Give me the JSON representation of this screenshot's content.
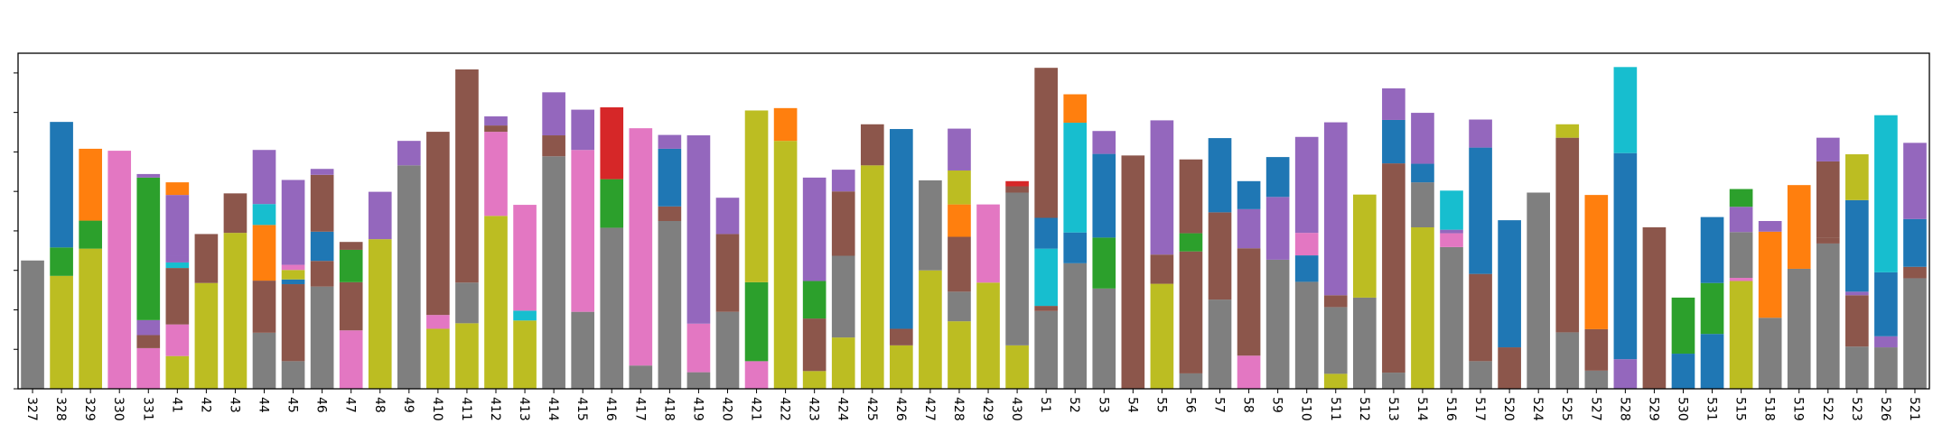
{
  "chart_data": {
    "type": "bar",
    "stacked": true,
    "title": "",
    "xlabel": "",
    "ylabel": "",
    "ylim": [
      0,
      85
    ],
    "grid": false,
    "legend": "none",
    "ytick_labels_visible": false,
    "categories": [
      "327",
      "328",
      "329",
      "330",
      "331",
      "41",
      "42",
      "43",
      "44",
      "45",
      "46",
      "47",
      "48",
      "49",
      "410",
      "411",
      "412",
      "413",
      "414",
      "415",
      "416",
      "417",
      "418",
      "419",
      "420",
      "421",
      "422",
      "423",
      "424",
      "425",
      "426",
      "427",
      "428",
      "429",
      "430",
      "51",
      "52",
      "53",
      "54",
      "55",
      "56",
      "57",
      "58",
      "59",
      "510",
      "511",
      "512",
      "513",
      "514",
      "516",
      "517",
      "520",
      "524",
      "525",
      "527",
      "528",
      "529",
      "530",
      "531",
      "515",
      "518",
      "519",
      "522",
      "523",
      "526",
      "521"
    ],
    "stacks": [
      [
        [
          "gray",
          32.5
        ]
      ],
      [
        [
          "olive",
          28.6
        ],
        [
          "green",
          7.2
        ],
        [
          "blue",
          31.8
        ]
      ],
      [
        [
          "olive",
          35.5
        ],
        [
          "green",
          7.1
        ],
        [
          "orange",
          18.2
        ]
      ],
      [
        [
          "pink",
          60.3
        ]
      ],
      [
        [
          "pink",
          10.3
        ],
        [
          "brown",
          3.3
        ],
        [
          "purple",
          3.8
        ],
        [
          "green",
          36.1
        ],
        [
          "purple",
          0.9
        ]
      ],
      [
        [
          "olive",
          8.3
        ],
        [
          "pink",
          8.0
        ],
        [
          "brown",
          14.3
        ],
        [
          "cyan",
          1.4
        ],
        [
          "purple",
          1.7
        ],
        [
          "purple",
          15.4
        ],
        [
          "orange",
          3.2
        ]
      ],
      [
        [
          "olive",
          26.8
        ],
        [
          "brown",
          12.4
        ]
      ],
      [
        [
          "olive",
          39.5
        ],
        [
          "brown",
          10.0
        ]
      ],
      [
        [
          "gray",
          14.2
        ],
        [
          "brown",
          13.2
        ],
        [
          "orange",
          14.1
        ],
        [
          "cyan",
          5.3
        ],
        [
          "purple",
          13.7
        ]
      ],
      [
        [
          "gray",
          7.0
        ],
        [
          "brown",
          19.5
        ],
        [
          "blue",
          1.2
        ],
        [
          "olive",
          2.4
        ],
        [
          "pink",
          1.3
        ],
        [
          "purple",
          21.5
        ]
      ],
      [
        [
          "gray",
          25.9
        ],
        [
          "brown",
          6.5
        ],
        [
          "blue",
          7.4
        ],
        [
          "brown",
          14.4
        ],
        [
          "purple",
          1.5
        ]
      ],
      [
        [
          "pink",
          14.8
        ],
        [
          "brown",
          12.2
        ],
        [
          "green",
          8.2
        ],
        [
          "brown",
          2.0
        ]
      ],
      [
        [
          "olive",
          37.9
        ],
        [
          "purple",
          12.0
        ]
      ],
      [
        [
          "gray",
          56.6
        ],
        [
          "purple",
          6.2
        ]
      ],
      [
        [
          "olive",
          15.2
        ],
        [
          "pink",
          3.5
        ],
        [
          "brown",
          46.4
        ]
      ],
      [
        [
          "olive",
          16.6
        ],
        [
          "gray",
          10.3
        ],
        [
          "brown",
          54.0
        ]
      ],
      [
        [
          "olive",
          43.8
        ],
        [
          "pink",
          21.3
        ],
        [
          "brown",
          1.6
        ],
        [
          "purple",
          2.3
        ]
      ],
      [
        [
          "olive",
          17.3
        ],
        [
          "cyan",
          2.5
        ],
        [
          "pink",
          26.8
        ]
      ],
      [
        [
          "gray",
          58.9
        ],
        [
          "brown",
          5.3
        ],
        [
          "purple",
          10.9
        ]
      ],
      [
        [
          "gray",
          19.5
        ],
        [
          "pink",
          41.0
        ],
        [
          "purple",
          10.2
        ]
      ],
      [
        [
          "gray",
          40.8
        ],
        [
          "green",
          12.3
        ],
        [
          "red",
          18.2
        ]
      ],
      [
        [
          "gray",
          5.9
        ],
        [
          "pink",
          60.1
        ]
      ],
      [
        [
          "gray",
          42.5
        ],
        [
          "brown",
          3.7
        ],
        [
          "blue",
          14.6
        ],
        [
          "purple",
          3.5
        ]
      ],
      [
        [
          "gray",
          4.2
        ],
        [
          "pink",
          12.3
        ],
        [
          "purple",
          47.7
        ]
      ],
      [
        [
          "gray",
          19.5
        ],
        [
          "brown",
          19.7
        ],
        [
          "purple",
          9.2
        ]
      ],
      [
        [
          "pink",
          7.0
        ],
        [
          "green",
          20.0
        ],
        [
          "olive",
          43.5
        ]
      ],
      [
        [
          "olive",
          62.8
        ],
        [
          "orange",
          8.3
        ]
      ],
      [
        [
          "olive",
          4.5
        ],
        [
          "brown",
          13.3
        ],
        [
          "green",
          9.5
        ],
        [
          "purple",
          26.2
        ]
      ],
      [
        [
          "olive",
          13.0
        ],
        [
          "gray",
          20.7
        ],
        [
          "brown",
          16.3
        ],
        [
          "purple",
          5.5
        ]
      ],
      [
        [
          "olive",
          56.6
        ],
        [
          "brown",
          10.4
        ]
      ],
      [
        [
          "olive",
          11.0
        ],
        [
          "brown",
          4.2
        ],
        [
          "blue",
          50.6
        ]
      ],
      [
        [
          "olive",
          30.0
        ],
        [
          "gray",
          22.8
        ]
      ],
      [
        [
          "olive",
          17.1
        ],
        [
          "gray",
          7.5
        ],
        [
          "brown",
          13.9
        ],
        [
          "orange",
          8.2
        ],
        [
          "olive",
          8.6
        ],
        [
          "purple",
          10.6
        ]
      ],
      [
        [
          "olive",
          26.9
        ],
        [
          "pink",
          19.8
        ]
      ],
      [
        [
          "olive",
          11.0
        ],
        [
          "gray",
          38.7
        ],
        [
          "brown",
          1.6
        ],
        [
          "red",
          1.3
        ]
      ],
      [
        [
          "gray",
          19.7
        ],
        [
          "brown",
          1.3
        ],
        [
          "cyan",
          14.5
        ],
        [
          "blue",
          7.8
        ],
        [
          "brown",
          38.0
        ]
      ],
      [
        [
          "gray",
          31.8
        ],
        [
          "blue",
          7.8
        ],
        [
          "cyan",
          27.8
        ],
        [
          "orange",
          7.2
        ]
      ],
      [
        [
          "gray",
          25.4
        ],
        [
          "green",
          12.9
        ],
        [
          "blue",
          21.2
        ],
        [
          "purple",
          5.8
        ]
      ],
      [
        [
          "brown",
          59.1
        ]
      ],
      [
        [
          "olive",
          26.6
        ],
        [
          "brown",
          7.4
        ],
        [
          "purple",
          34.0
        ]
      ],
      [
        [
          "gray",
          3.9
        ],
        [
          "brown",
          30.9
        ],
        [
          "green",
          4.6
        ],
        [
          "brown",
          18.7
        ]
      ],
      [
        [
          "gray",
          22.6
        ],
        [
          "brown",
          22.1
        ],
        [
          "blue",
          18.8
        ]
      ],
      [
        [
          "pink",
          8.4
        ],
        [
          "brown",
          27.2
        ],
        [
          "purple",
          9.9
        ],
        [
          "blue",
          7.1
        ]
      ],
      [
        [
          "gray",
          32.7
        ],
        [
          "purple",
          15.9
        ],
        [
          "blue",
          10.1
        ]
      ],
      [
        [
          "gray",
          27.1
        ],
        [
          "blue",
          6.7
        ],
        [
          "pink",
          5.7
        ],
        [
          "purple",
          24.3
        ]
      ],
      [
        [
          "olive",
          3.8
        ],
        [
          "gray",
          16.9
        ],
        [
          "brown",
          3.0
        ],
        [
          "purple",
          43.8
        ]
      ],
      [
        [
          "gray",
          23.1
        ],
        [
          "olive",
          26.1
        ]
      ],
      [
        [
          "gray",
          4.1
        ],
        [
          "brown",
          53.0
        ],
        [
          "blue",
          11.0
        ],
        [
          "purple",
          8.0
        ]
      ],
      [
        [
          "olive",
          40.9
        ],
        [
          "gray",
          11.4
        ],
        [
          "blue",
          4.7
        ],
        [
          "purple",
          12.9
        ]
      ],
      [
        [
          "gray",
          35.9
        ],
        [
          "pink",
          3.5
        ],
        [
          "purple",
          0.9
        ],
        [
          "cyan",
          9.9
        ]
      ],
      [
        [
          "gray",
          7.0
        ],
        [
          "brown",
          22.1
        ],
        [
          "blue",
          32.0
        ],
        [
          "purple",
          7.1
        ]
      ],
      [
        [
          "brown",
          10.5
        ],
        [
          "blue",
          32.2
        ]
      ],
      [
        [
          "gray",
          49.7
        ]
      ],
      [
        [
          "gray",
          14.3
        ],
        [
          "brown",
          49.3
        ],
        [
          "olive",
          3.4
        ]
      ],
      [
        [
          "gray",
          4.6
        ],
        [
          "brown",
          10.5
        ],
        [
          "orange",
          34.0
        ]
      ],
      [
        [
          "purple",
          7.5
        ],
        [
          "blue",
          52.2
        ],
        [
          "cyan",
          21.8
        ]
      ],
      [
        [
          "brown",
          40.9
        ]
      ],
      [
        [
          "blue",
          8.9
        ],
        [
          "green",
          14.2
        ]
      ],
      [
        [
          "blue",
          13.9
        ],
        [
          "green",
          12.9
        ],
        [
          "blue",
          16.7
        ]
      ],
      [
        [
          "olive",
          27.3
        ],
        [
          "pink",
          0.8
        ],
        [
          "gray",
          11.6
        ],
        [
          "purple",
          6.4
        ],
        [
          "green",
          4.5
        ]
      ],
      [
        [
          "gray",
          18.0
        ],
        [
          "orange",
          21.8
        ],
        [
          "purple",
          2.7
        ]
      ],
      [
        [
          "gray",
          30.4
        ],
        [
          "orange",
          21.2
        ]
      ],
      [
        [
          "gray",
          36.8
        ],
        [
          "brown",
          1.5
        ],
        [
          "brown",
          19.3
        ],
        [
          "purple",
          6.0
        ]
      ],
      [
        [
          "gray",
          10.7
        ],
        [
          "brown",
          13.0
        ],
        [
          "purple",
          0.9
        ],
        [
          "blue",
          23.2
        ],
        [
          "olive",
          11.6
        ]
      ],
      [
        [
          "gray",
          10.5
        ],
        [
          "purple",
          2.8
        ],
        [
          "blue",
          16.2
        ],
        [
          "cyan",
          39.8
        ]
      ],
      [
        [
          "gray",
          28.0
        ],
        [
          "brown",
          2.9
        ],
        [
          "blue",
          12.1
        ],
        [
          "purple",
          19.3
        ]
      ]
    ],
    "colors": {
      "blue": "#1f77b4",
      "orange": "#ff7f0e",
      "green": "#2ca02c",
      "red": "#d62728",
      "purple": "#9467bd",
      "brown": "#8c564b",
      "pink": "#e377c2",
      "gray": "#7f7f7f",
      "olive": "#bcbd22",
      "cyan": "#17becf"
    }
  }
}
